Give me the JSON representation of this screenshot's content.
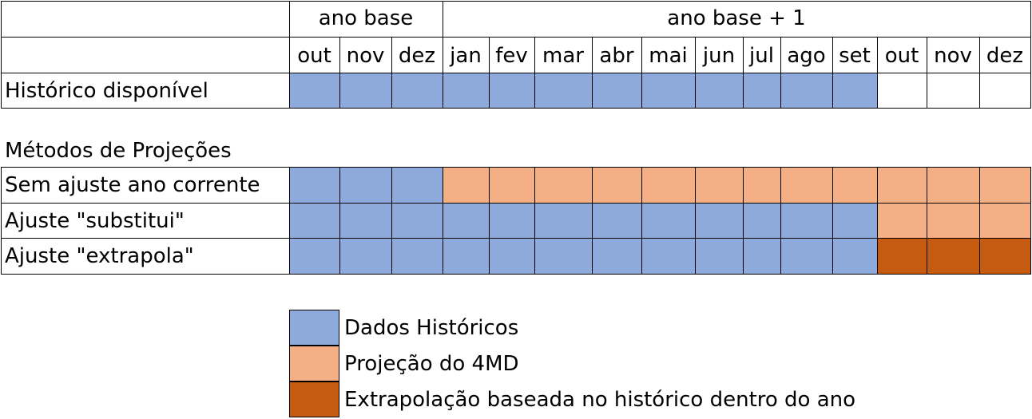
{
  "header": {
    "group_base": "ano base",
    "group_next": "ano base + 1",
    "months": [
      "out",
      "nov",
      "dez",
      "jan",
      "fev",
      "mar",
      "abr",
      "mai",
      "jun",
      "jul",
      "ago",
      "set",
      "out",
      "nov",
      "dez"
    ]
  },
  "historico": {
    "label": "Histórico disponível",
    "cells": [
      "h",
      "h",
      "h",
      "h",
      "h",
      "h",
      "h",
      "h",
      "h",
      "h",
      "h",
      "h",
      "",
      "",
      ""
    ]
  },
  "metodos_title": "Métodos de Projeções",
  "methods": [
    {
      "label": "Sem ajuste ano corrente",
      "cells": [
        "h",
        "h",
        "h",
        "p",
        "p",
        "p",
        "p",
        "p",
        "p",
        "p",
        "p",
        "p",
        "p",
        "p",
        "p"
      ]
    },
    {
      "label": "Ajuste \"substitui\"",
      "cells": [
        "h",
        "h",
        "h",
        "h",
        "h",
        "h",
        "h",
        "h",
        "h",
        "h",
        "h",
        "h",
        "p",
        "p",
        "p"
      ]
    },
    {
      "label": "Ajuste \"extrapola\"",
      "cells": [
        "h",
        "h",
        "h",
        "h",
        "h",
        "h",
        "h",
        "h",
        "h",
        "h",
        "h",
        "h",
        "e",
        "e",
        "e"
      ]
    }
  ],
  "legend": [
    {
      "key": "h",
      "label": "Dados Históricos"
    },
    {
      "key": "p",
      "label": "Projeção do 4MD"
    },
    {
      "key": "e",
      "label": "Extrapolação baseada no histórico dentro do ano"
    }
  ],
  "colors": {
    "h": "#8EA9DB",
    "p": "#F4B084",
    "e": "#C55A11",
    "line": "#000000"
  }
}
